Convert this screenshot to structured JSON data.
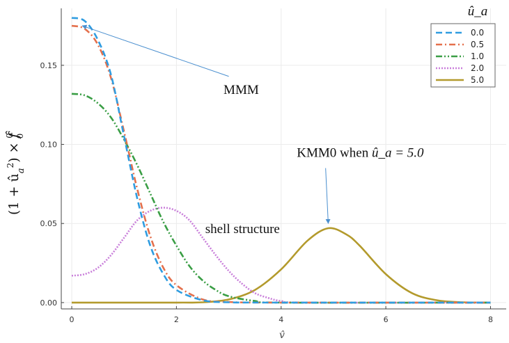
{
  "chart_data": {
    "type": "line",
    "xlabel": "v̂",
    "ylabel": "(1 + û_a²) × f̂₀⁰",
    "xlim": [
      -0.2,
      8.3
    ],
    "ylim": [
      -0.004,
      0.186
    ],
    "x_ticks": [
      "0",
      "2",
      "4",
      "6",
      "8"
    ],
    "y_ticks": [
      "0.00",
      "0.05",
      "0.10",
      "0.15"
    ],
    "grid": true,
    "legend_title": "û_a",
    "legend_position": "top-right",
    "series": [
      {
        "name": "0.0",
        "color": "#2f9ce0",
        "dash": "dashed",
        "points": [
          [
            0,
            0.18
          ],
          [
            0.25,
            0.178
          ],
          [
            0.5,
            0.166
          ],
          [
            0.75,
            0.144
          ],
          [
            1.0,
            0.105
          ],
          [
            1.25,
            0.066
          ],
          [
            1.5,
            0.036
          ],
          [
            1.75,
            0.018
          ],
          [
            2.0,
            0.008
          ],
          [
            2.5,
            0.0015
          ],
          [
            3.0,
            0.0002
          ],
          [
            4.0,
            0.0
          ],
          [
            8.0,
            0.0
          ]
        ]
      },
      {
        "name": "0.5",
        "color": "#e4704c",
        "dash": "dashdot",
        "points": [
          [
            0,
            0.175
          ],
          [
            0.25,
            0.173
          ],
          [
            0.5,
            0.163
          ],
          [
            0.75,
            0.142
          ],
          [
            1.0,
            0.108
          ],
          [
            1.25,
            0.072
          ],
          [
            1.5,
            0.042
          ],
          [
            1.75,
            0.022
          ],
          [
            2.0,
            0.011
          ],
          [
            2.5,
            0.002
          ],
          [
            3.0,
            0.0004
          ],
          [
            4.0,
            0.0
          ],
          [
            8.0,
            0.0
          ]
        ]
      },
      {
        "name": "1.0",
        "color": "#3a9e45",
        "dash": "dashdotdot",
        "points": [
          [
            0,
            0.132
          ],
          [
            0.25,
            0.131
          ],
          [
            0.5,
            0.126
          ],
          [
            0.75,
            0.117
          ],
          [
            1.0,
            0.103
          ],
          [
            1.25,
            0.087
          ],
          [
            1.5,
            0.069
          ],
          [
            1.75,
            0.051
          ],
          [
            2.0,
            0.036
          ],
          [
            2.25,
            0.023
          ],
          [
            2.5,
            0.014
          ],
          [
            2.75,
            0.008
          ],
          [
            3.0,
            0.004
          ],
          [
            3.5,
            0.001
          ],
          [
            4.0,
            0.0
          ],
          [
            8.0,
            0.0
          ]
        ]
      },
      {
        "name": "2.0",
        "color": "#c97fda",
        "dash": "dotted",
        "points": [
          [
            0,
            0.017
          ],
          [
            0.25,
            0.018
          ],
          [
            0.5,
            0.022
          ],
          [
            0.75,
            0.03
          ],
          [
            1.0,
            0.041
          ],
          [
            1.25,
            0.052
          ],
          [
            1.5,
            0.058
          ],
          [
            1.75,
            0.06
          ],
          [
            2.0,
            0.058
          ],
          [
            2.25,
            0.052
          ],
          [
            2.5,
            0.041
          ],
          [
            2.75,
            0.03
          ],
          [
            3.0,
            0.02
          ],
          [
            3.25,
            0.012
          ],
          [
            3.5,
            0.006
          ],
          [
            3.75,
            0.003
          ],
          [
            4.0,
            0.001
          ],
          [
            4.5,
            0.0
          ],
          [
            8.0,
            0.0
          ]
        ]
      },
      {
        "name": "5.0",
        "color": "#b39a2c",
        "dash": "solid",
        "points": [
          [
            0,
            0.0
          ],
          [
            2.0,
            0.0
          ],
          [
            2.5,
            0.0002
          ],
          [
            3.0,
            0.002
          ],
          [
            3.5,
            0.008
          ],
          [
            4.0,
            0.021
          ],
          [
            4.5,
            0.039
          ],
          [
            4.9,
            0.047
          ],
          [
            5.25,
            0.043
          ],
          [
            5.5,
            0.036
          ],
          [
            6.0,
            0.018
          ],
          [
            6.5,
            0.006
          ],
          [
            7.0,
            0.0013
          ],
          [
            7.5,
            0.0002
          ],
          [
            8.0,
            0.0
          ]
        ]
      }
    ],
    "annotations": [
      {
        "text": "MMM",
        "arrow_to": [
          0.2,
          0.175
        ],
        "arrow_from": [
          3.0,
          0.143
        ],
        "text_at": [
          2.9,
          0.132
        ]
      },
      {
        "text": "KMM0 when ",
        "math": "û_a = 5.0",
        "arrow_to": [
          4.9,
          0.05
        ],
        "arrow_from": [
          4.85,
          0.085
        ],
        "text_at": [
          4.3,
          0.092
        ]
      },
      {
        "text": "shell structure",
        "text_at": [
          2.55,
          0.044
        ]
      }
    ]
  }
}
